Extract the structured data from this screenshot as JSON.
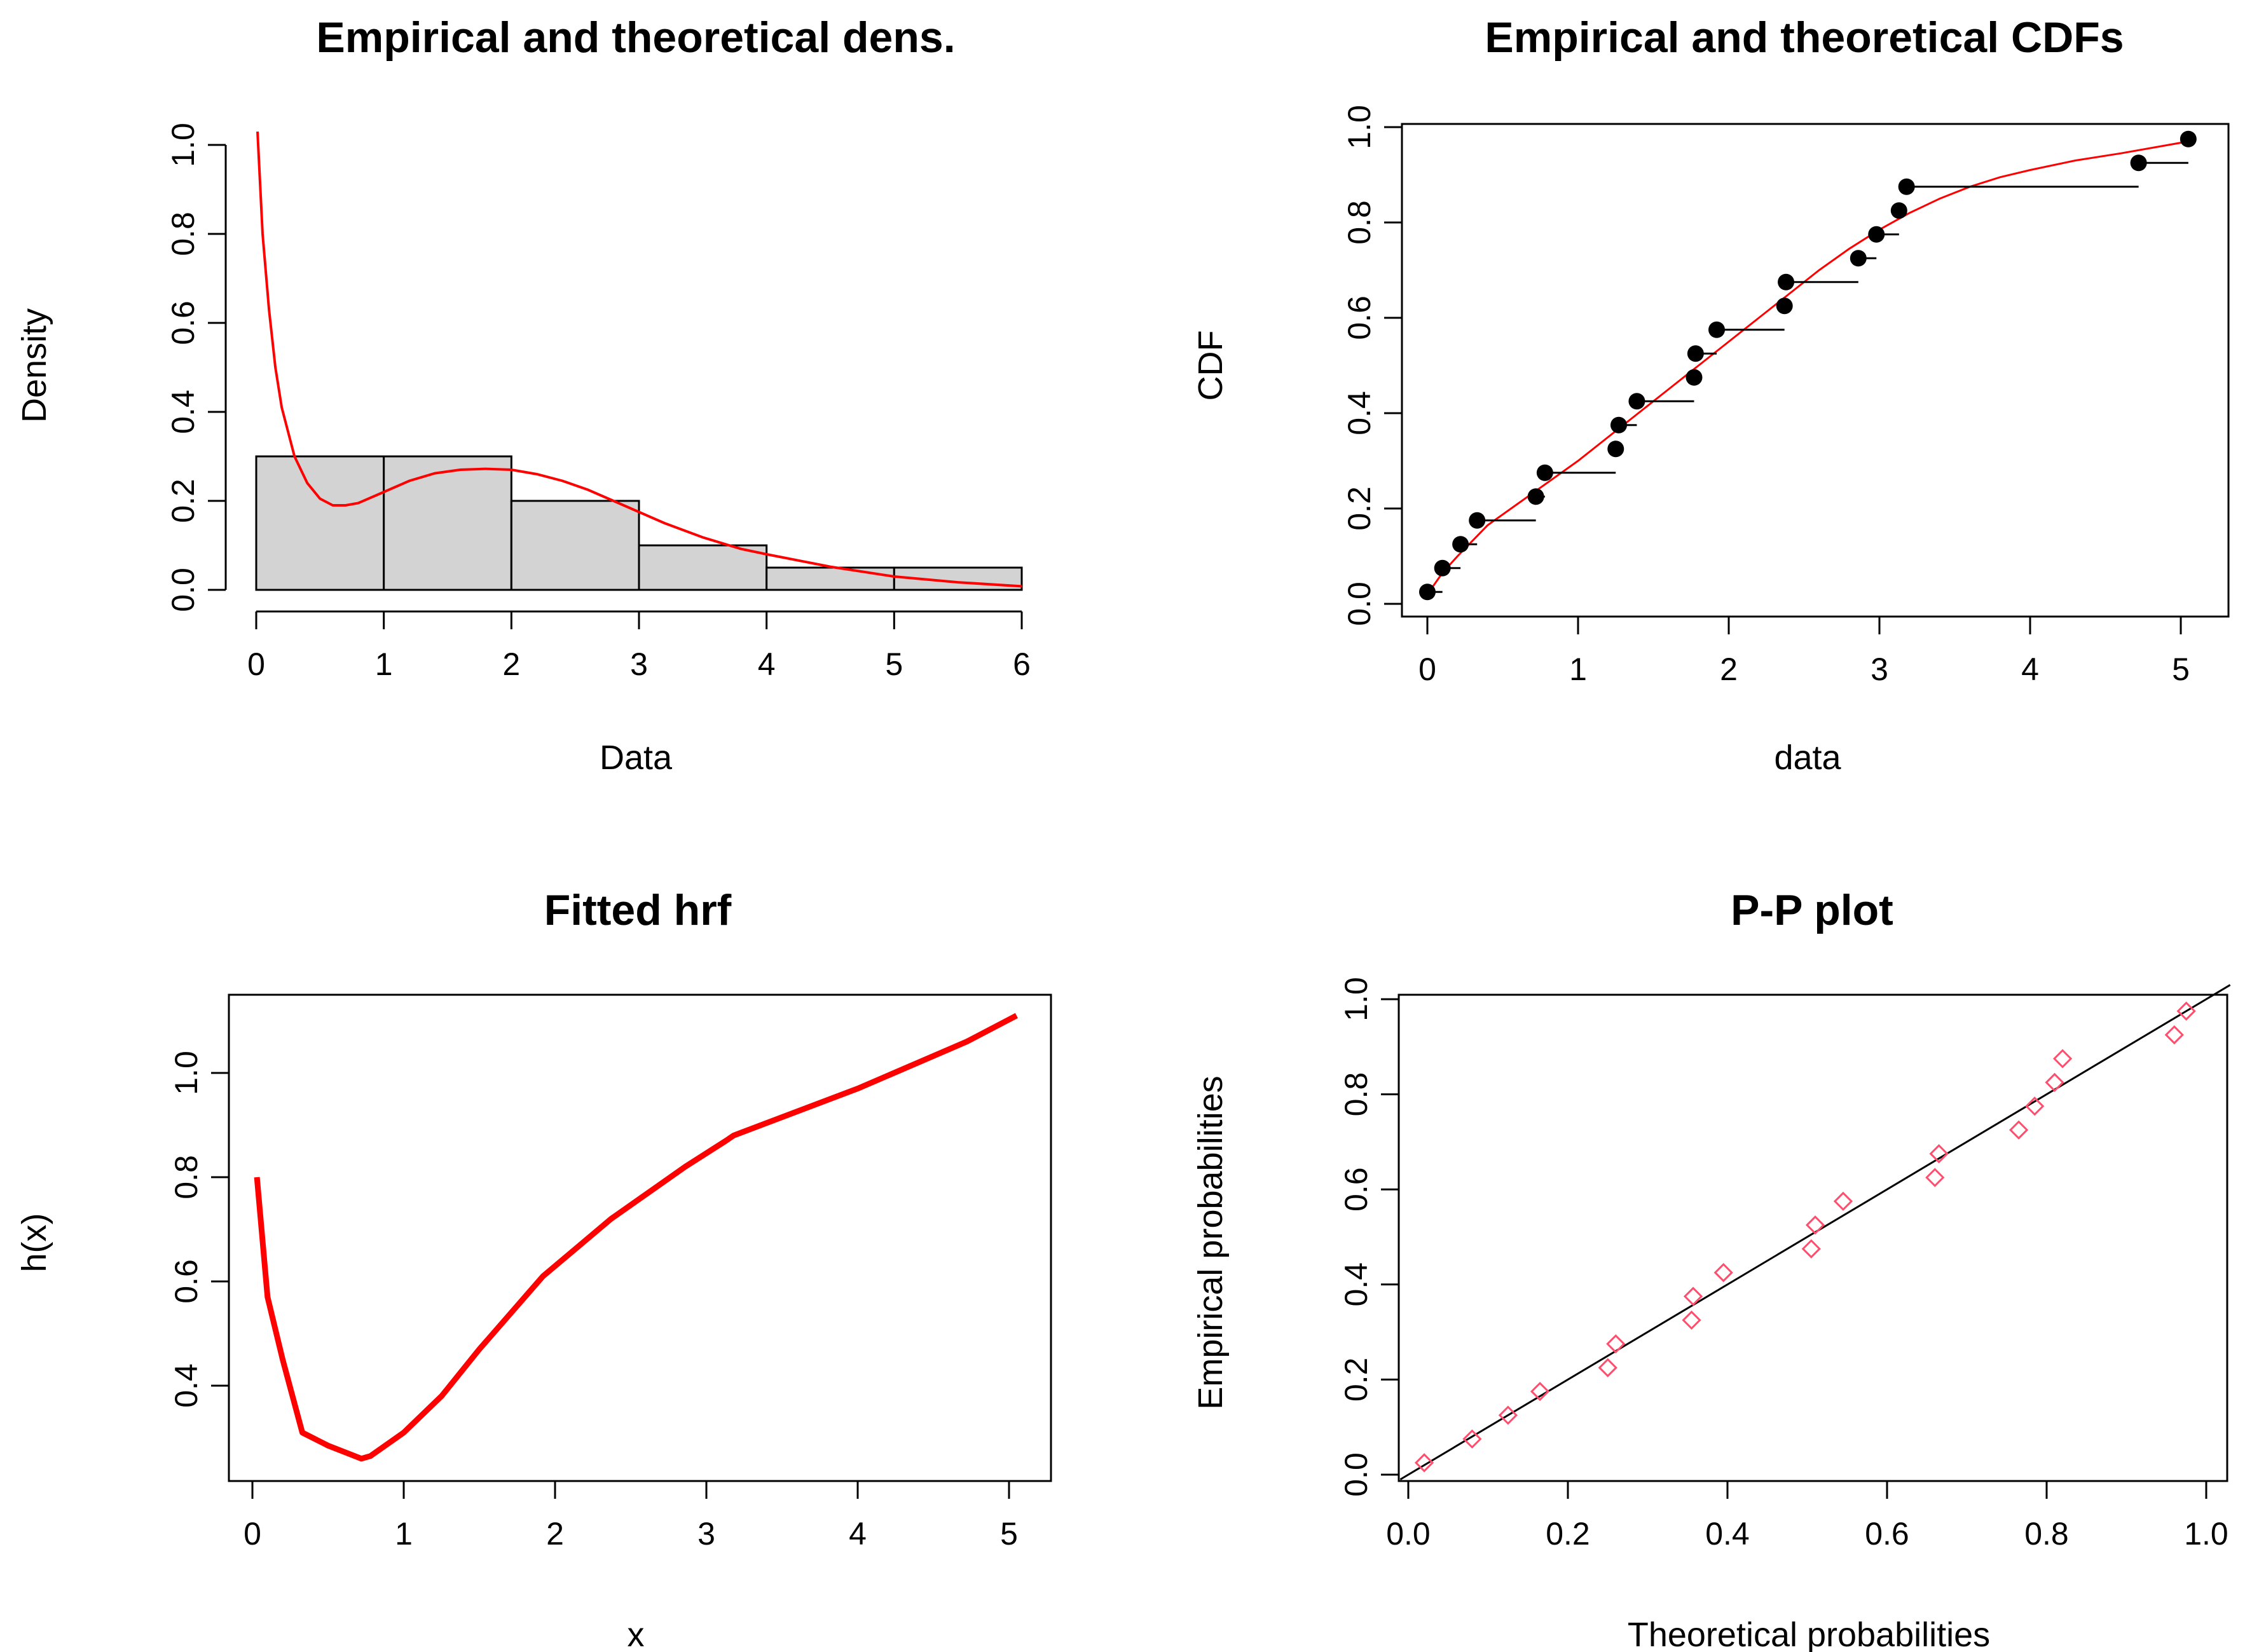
{
  "chart_data": [
    {
      "type": "histogram",
      "title": "Empirical and theoretical dens.",
      "xlabel": "Data",
      "ylabel": "Density",
      "xlim": [
        0,
        6
      ],
      "ylim": [
        0,
        1.0
      ],
      "xticks": [
        "0",
        "1",
        "2",
        "3",
        "4",
        "5",
        "6"
      ],
      "yticks": [
        "0.0",
        "0.2",
        "0.4",
        "0.6",
        "0.8",
        "1.0"
      ],
      "bins": [
        {
          "start": 0,
          "end": 1,
          "value": 0.3
        },
        {
          "start": 1,
          "end": 2,
          "value": 0.3
        },
        {
          "start": 2,
          "end": 3,
          "value": 0.2
        },
        {
          "start": 3,
          "end": 4,
          "value": 0.1
        },
        {
          "start": 4,
          "end": 5,
          "value": 0.05
        },
        {
          "start": 5,
          "end": 6,
          "value": 0.05
        }
      ],
      "bar_color": "#d3d3d3",
      "density_curve": {
        "color": "#ff0000",
        "x": [
          0.01,
          0.05,
          0.1,
          0.15,
          0.2,
          0.3,
          0.4,
          0.5,
          0.6,
          0.7,
          0.8,
          1.0,
          1.2,
          1.4,
          1.6,
          1.8,
          2.0,
          2.2,
          2.4,
          2.6,
          2.8,
          3.0,
          3.2,
          3.5,
          3.8,
          4.0,
          4.5,
          5.0,
          5.5,
          6.0
        ],
        "y": [
          1.03,
          0.8,
          0.63,
          0.5,
          0.41,
          0.3,
          0.24,
          0.205,
          0.19,
          0.19,
          0.195,
          0.22,
          0.245,
          0.262,
          0.27,
          0.272,
          0.27,
          0.26,
          0.245,
          0.225,
          0.2,
          0.175,
          0.15,
          0.118,
          0.092,
          0.08,
          0.052,
          0.03,
          0.017,
          0.008
        ]
      }
    },
    {
      "type": "step",
      "title": "Empirical and theoretical CDFs",
      "xlabel": "data",
      "ylabel": "CDF",
      "xlim": [
        0,
        5
      ],
      "ylim": [
        0,
        1.0
      ],
      "xticks": [
        "0",
        "1",
        "2",
        "3",
        "4",
        "5"
      ],
      "yticks": [
        "0.0",
        "0.2",
        "0.4",
        "0.6",
        "0.8",
        "1.0"
      ],
      "points": {
        "x": [
          0.0,
          0.1,
          0.22,
          0.33,
          0.72,
          0.78,
          1.25,
          1.27,
          1.39,
          1.77,
          1.78,
          1.92,
          2.37,
          2.38,
          2.86,
          2.98,
          3.13,
          3.18,
          4.72,
          5.05
        ],
        "y": [
          0.025,
          0.075,
          0.125,
          0.175,
          0.225,
          0.275,
          0.325,
          0.375,
          0.425,
          0.475,
          0.525,
          0.575,
          0.625,
          0.675,
          0.725,
          0.775,
          0.825,
          0.875,
          0.925,
          0.975
        ]
      },
      "theoretical_cdf": {
        "color": "#ff0000",
        "x": [
          0,
          0.1,
          0.2,
          0.4,
          0.6,
          0.8,
          1.0,
          1.2,
          1.4,
          1.6,
          1.8,
          2.0,
          2.2,
          2.4,
          2.6,
          2.8,
          3.0,
          3.2,
          3.4,
          3.6,
          3.8,
          4.0,
          4.3,
          4.6,
          5.05
        ],
        "y": [
          0.02,
          0.065,
          0.1,
          0.165,
          0.21,
          0.255,
          0.3,
          0.35,
          0.4,
          0.45,
          0.5,
          0.55,
          0.6,
          0.65,
          0.7,
          0.745,
          0.785,
          0.82,
          0.85,
          0.875,
          0.895,
          0.91,
          0.93,
          0.945,
          0.97
        ]
      }
    },
    {
      "type": "line",
      "title": "Fitted hrf",
      "xlabel": "x",
      "ylabel": "h(x)",
      "xlim": [
        0,
        5
      ],
      "ylim": [
        0.25,
        1.12
      ],
      "xticks": [
        "0",
        "1",
        "2",
        "3",
        "4",
        "5"
      ],
      "yticks": [
        "0.4",
        "0.6",
        "0.8",
        "1.0"
      ],
      "series": [
        {
          "name": "h(x)",
          "color": "#ff0000",
          "x": [
            0.03,
            0.1,
            0.2,
            0.33,
            0.5,
            0.72,
            0.78,
            1.0,
            1.25,
            1.5,
            1.77,
            1.92,
            2.37,
            2.86,
            3.13,
            3.18,
            4.0,
            4.72,
            5.05
          ],
          "y": [
            0.8,
            0.57,
            0.45,
            0.31,
            0.285,
            0.26,
            0.265,
            0.31,
            0.38,
            0.47,
            0.56,
            0.61,
            0.72,
            0.82,
            0.87,
            0.88,
            0.97,
            1.06,
            1.11
          ]
        }
      ]
    },
    {
      "type": "scatter",
      "title": "P-P plot",
      "xlabel": "Theoretical probabilities",
      "ylabel": "Empirical probabilities",
      "xlim": [
        0,
        1.0
      ],
      "ylim": [
        0,
        1.0
      ],
      "xticks": [
        "0.0",
        "0.2",
        "0.4",
        "0.6",
        "0.8",
        "1.0"
      ],
      "yticks": [
        "0.0",
        "0.2",
        "0.4",
        "0.6",
        "0.8",
        "1.0"
      ],
      "point_color": "#ff4d6d",
      "reference_line": {
        "x": [
          0,
          1
        ],
        "y": [
          0,
          1
        ]
      },
      "points": {
        "x": [
          0.02,
          0.08,
          0.125,
          0.165,
          0.25,
          0.26,
          0.355,
          0.357,
          0.395,
          0.505,
          0.51,
          0.545,
          0.66,
          0.665,
          0.765,
          0.785,
          0.81,
          0.82,
          0.96,
          0.975
        ],
        "y": [
          0.025,
          0.075,
          0.125,
          0.175,
          0.225,
          0.275,
          0.325,
          0.375,
          0.425,
          0.475,
          0.525,
          0.575,
          0.625,
          0.675,
          0.725,
          0.775,
          0.825,
          0.875,
          0.925,
          0.975
        ]
      }
    }
  ]
}
